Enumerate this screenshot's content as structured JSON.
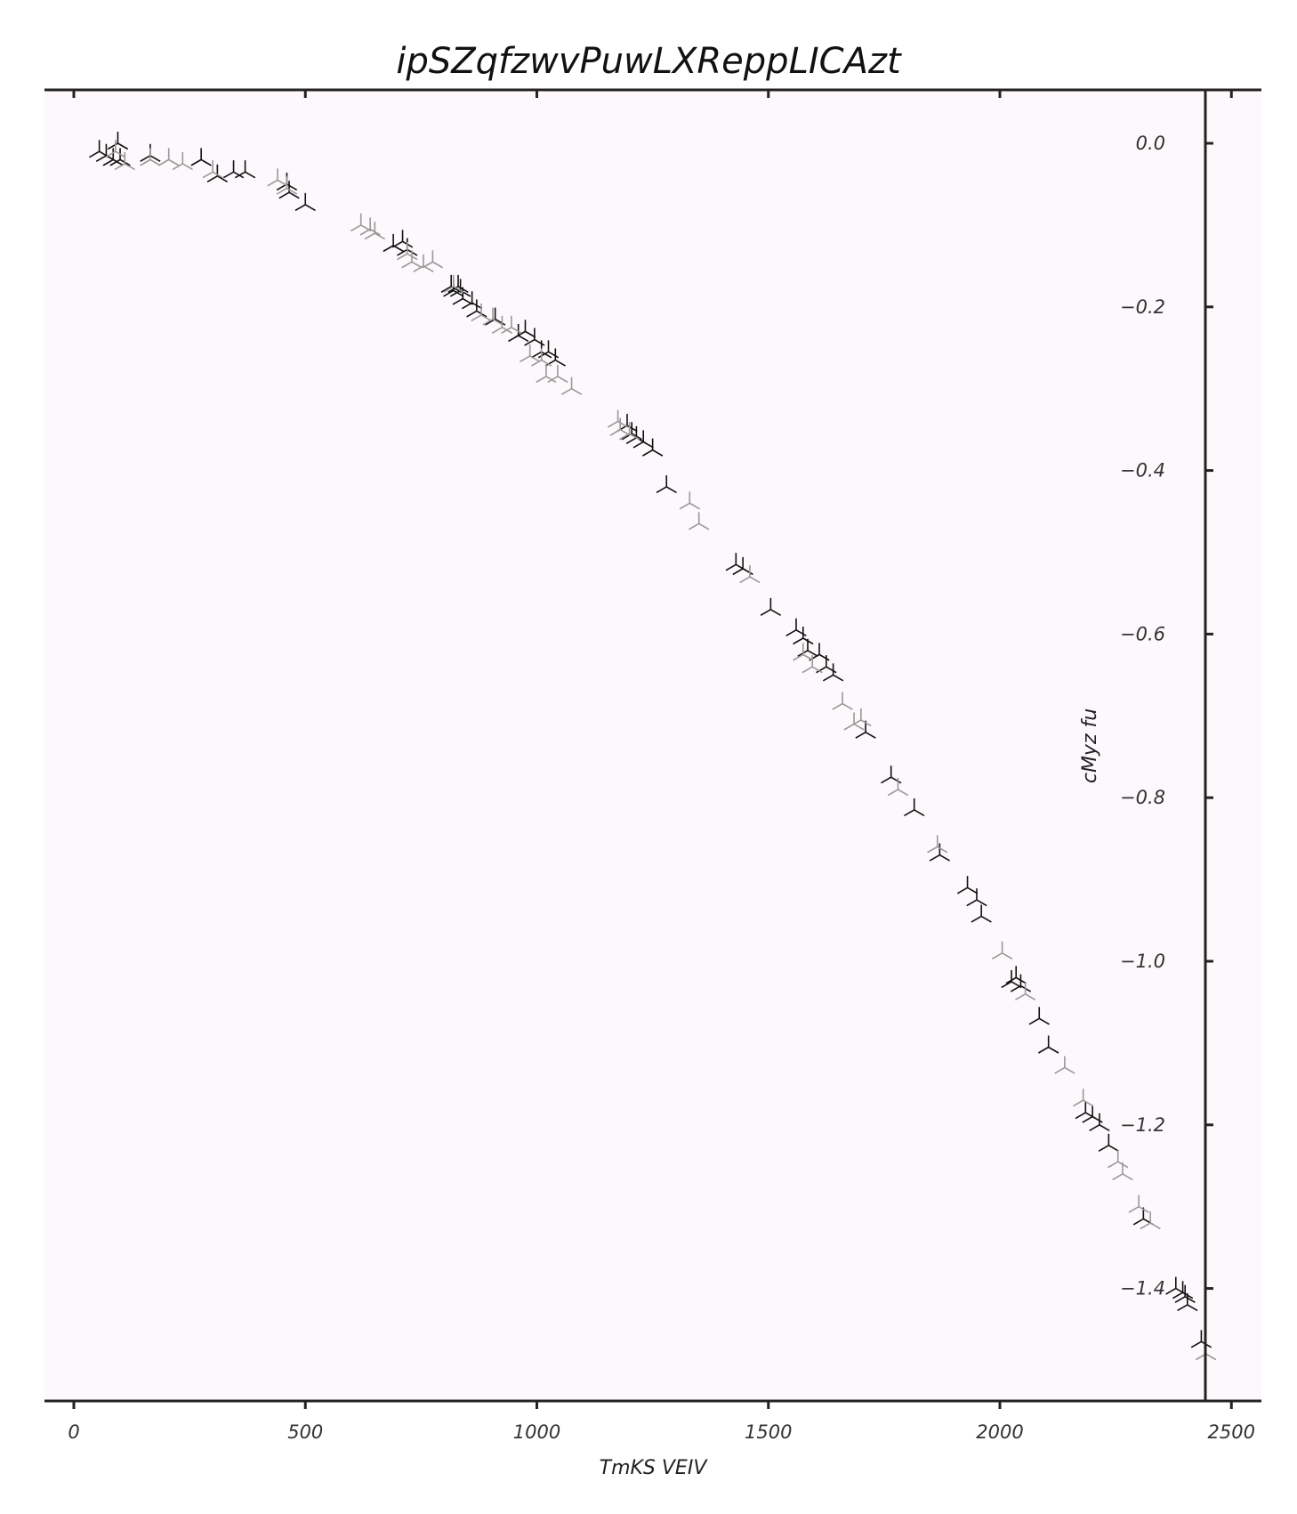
{
  "chart_data": {
    "type": "scatter",
    "title": "ipSZqfzwvPuwLXReppLICAzt",
    "xlabel": "TmKS VEIV",
    "ylabel": "cMyz fu",
    "xlim": [
      -60,
      2560
    ],
    "ylim": [
      -1.53,
      0.07
    ],
    "xticks": [
      0,
      500,
      1000,
      1500,
      2000,
      2500
    ],
    "yticks": [
      0.0,
      -0.2,
      -0.4,
      -0.6,
      -0.8,
      -1.0,
      -1.2,
      -1.4
    ],
    "xtick_labels": [
      "0",
      "500",
      "1000",
      "1500",
      "2000",
      "2500"
    ],
    "ytick_labels": [
      "0.0",
      "−0.2",
      "−0.4",
      "−0.6",
      "−0.8",
      "−1.0",
      "−1.2",
      "−1.4"
    ],
    "y_axis_position": "right",
    "grid": false,
    "legend": "none",
    "colors": {
      "background": "#fdf8fc",
      "series_dark": "#111111",
      "series_light": "#999999",
      "spine": "#222222"
    },
    "marker": "tri-down",
    "series": [
      {
        "color": "#111111",
        "x": [
          55,
          70,
          85,
          95,
          100,
          165,
          275,
          310,
          345,
          370,
          460,
          465,
          500,
          690,
          710,
          720,
          815,
          820,
          830,
          835,
          840,
          860,
          870,
          910,
          960,
          975,
          995,
          1010,
          1025,
          1040,
          1195,
          1205,
          1215,
          1230,
          1250,
          1280,
          1430,
          1445,
          1505,
          1560,
          1575,
          1585,
          1610,
          1625,
          1640,
          1710,
          1765,
          1815,
          1870,
          1930,
          1950,
          1960,
          2025,
          2035,
          2045,
          2085,
          2105,
          2185,
          2200,
          2215,
          2235,
          2310,
          2380,
          2395,
          2400,
          2405,
          2435
        ],
        "y": [
          -0.01,
          -0.015,
          -0.02,
          0.0,
          -0.02,
          -0.015,
          -0.02,
          -0.04,
          -0.035,
          -0.035,
          -0.05,
          -0.06,
          -0.075,
          -0.125,
          -0.12,
          -0.13,
          -0.175,
          -0.18,
          -0.175,
          -0.18,
          -0.19,
          -0.195,
          -0.205,
          -0.215,
          -0.235,
          -0.23,
          -0.24,
          -0.255,
          -0.255,
          -0.265,
          -0.345,
          -0.355,
          -0.36,
          -0.365,
          -0.375,
          -0.42,
          -0.515,
          -0.52,
          -0.57,
          -0.595,
          -0.605,
          -0.62,
          -0.625,
          -0.64,
          -0.65,
          -0.72,
          -0.775,
          -0.815,
          -0.87,
          -0.91,
          -0.925,
          -0.945,
          -1.025,
          -1.02,
          -1.03,
          -1.07,
          -1.105,
          -1.185,
          -1.19,
          -1.2,
          -1.225,
          -1.315,
          -1.4,
          -1.405,
          -1.41,
          -1.42,
          -1.465
        ]
      },
      {
        "color": "#999999",
        "x": [
          90,
          110,
          165,
          205,
          235,
          300,
          440,
          460,
          620,
          640,
          650,
          720,
          730,
          755,
          775,
          820,
          880,
          905,
          925,
          945,
          985,
          1010,
          1020,
          1045,
          1075,
          1175,
          1180,
          1200,
          1330,
          1350,
          1460,
          1575,
          1595,
          1660,
          1685,
          1700,
          1780,
          1865,
          2005,
          2055,
          2140,
          2180,
          2255,
          2265,
          2300,
          2325,
          2445
        ],
        "y": [
          -0.01,
          -0.025,
          -0.02,
          -0.02,
          -0.025,
          -0.035,
          -0.045,
          -0.055,
          -0.1,
          -0.105,
          -0.11,
          -0.135,
          -0.145,
          -0.15,
          -0.145,
          -0.175,
          -0.21,
          -0.215,
          -0.225,
          -0.225,
          -0.26,
          -0.265,
          -0.285,
          -0.285,
          -0.3,
          -0.34,
          -0.35,
          -0.355,
          -0.44,
          -0.465,
          -0.53,
          -0.625,
          -0.64,
          -0.685,
          -0.71,
          -0.705,
          -0.79,
          -0.86,
          -0.99,
          -1.04,
          -1.13,
          -1.17,
          -1.245,
          -1.26,
          -1.3,
          -1.32,
          -1.48
        ]
      }
    ]
  }
}
